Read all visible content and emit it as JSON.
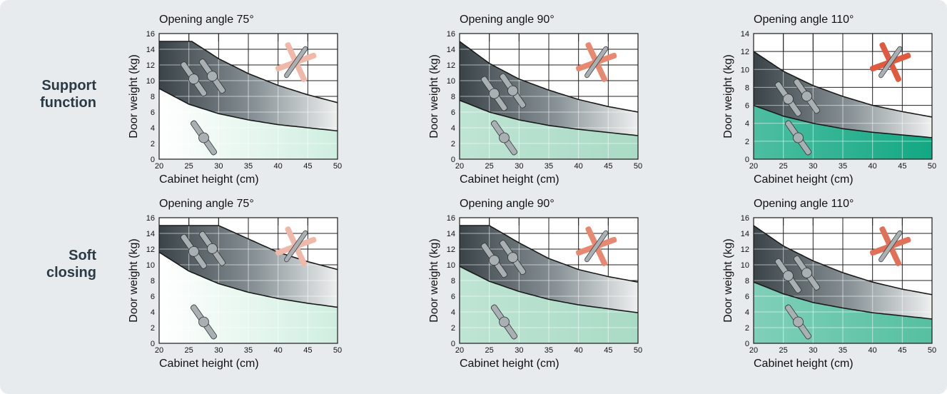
{
  "row_labels": [
    "Support\nfunction",
    "Soft\nclosing"
  ],
  "chart_data": [
    {
      "type": "area",
      "row": 0,
      "col": 0,
      "title": "Opening angle 75°",
      "xlabel": "Cabinet height (cm)",
      "ylabel": "Door weight (kg)",
      "xlim": [
        20,
        50
      ],
      "ylim": [
        0,
        16
      ],
      "xticks": [
        20,
        25,
        30,
        35,
        40,
        45,
        50
      ],
      "yticks": [
        0,
        2,
        4,
        6,
        8,
        10,
        12,
        14,
        16
      ],
      "grid": true,
      "lower_boundary": {
        "x": [
          20,
          25,
          30,
          35,
          40,
          45,
          50
        ],
        "y": [
          9.0,
          7.0,
          5.8,
          5.0,
          4.4,
          4.0,
          3.6
        ]
      },
      "upper_boundary": {
        "x": [
          20,
          25,
          25.5,
          30,
          35,
          40,
          45,
          50
        ],
        "y": [
          15.0,
          15.0,
          15.0,
          12.8,
          10.9,
          9.4,
          8.2,
          7.2
        ]
      },
      "fill_color": "#ffffff",
      "band_color": "#3a4448",
      "hinge_color": "#f0b8a8"
    },
    {
      "type": "area",
      "row": 0,
      "col": 1,
      "title": "Opening angle 90°",
      "xlabel": "Cabinet height (cm)",
      "ylabel": "Door weight (kg)",
      "xlim": [
        20,
        50
      ],
      "ylim": [
        0,
        16
      ],
      "xticks": [
        20,
        25,
        30,
        35,
        40,
        45,
        50
      ],
      "yticks": [
        0,
        2,
        4,
        6,
        8,
        10,
        12,
        14,
        16
      ],
      "grid": true,
      "lower_boundary": {
        "x": [
          20,
          25,
          30,
          35,
          40,
          45,
          50
        ],
        "y": [
          7.5,
          6.0,
          5.0,
          4.3,
          3.8,
          3.4,
          3.0
        ]
      },
      "upper_boundary": {
        "x": [
          20,
          25,
          30,
          35,
          40,
          45,
          50
        ],
        "y": [
          15.0,
          12.2,
          10.2,
          8.8,
          7.6,
          6.7,
          6.0
        ]
      },
      "fill_color": "#a9dbc5",
      "band_color": "#3a4448",
      "hinge_color": "#e88870"
    },
    {
      "type": "area",
      "row": 0,
      "col": 2,
      "title": "Opening angle 110°",
      "xlabel": "Cabinet height (cm)",
      "ylabel": "Door weight (kg)",
      "xlim": [
        20,
        50
      ],
      "ylim": [
        0,
        14
      ],
      "xticks": [
        20,
        25,
        30,
        35,
        40,
        45,
        50
      ],
      "yticks": [
        0,
        2,
        4,
        6,
        8,
        10,
        12,
        14
      ],
      "grid": true,
      "lower_boundary": {
        "x": [
          20,
          25,
          30,
          35,
          40,
          45,
          50
        ],
        "y": [
          6.0,
          4.8,
          4.0,
          3.4,
          3.0,
          2.7,
          2.4
        ]
      },
      "upper_boundary": {
        "x": [
          20,
          25,
          30,
          35,
          40,
          45,
          50
        ],
        "y": [
          12.0,
          9.8,
          8.2,
          7.0,
          6.0,
          5.3,
          4.7
        ]
      },
      "fill_color": "#12a883",
      "band_color": "#3a4448",
      "hinge_color": "#e05a40"
    },
    {
      "type": "area",
      "row": 1,
      "col": 0,
      "title": "Opening angle 75°",
      "xlabel": "Cabinet height (cm)",
      "ylabel": "Door weight (kg)",
      "xlim": [
        20,
        50
      ],
      "ylim": [
        0,
        16
      ],
      "xticks": [
        20,
        25,
        30,
        35,
        40,
        45,
        50
      ],
      "yticks": [
        0,
        2,
        4,
        6,
        8,
        10,
        12,
        14,
        16
      ],
      "grid": true,
      "lower_boundary": {
        "x": [
          20,
          25,
          30,
          35,
          40,
          45,
          50
        ],
        "y": [
          11.6,
          9.2,
          7.6,
          6.5,
          5.7,
          5.1,
          4.6
        ]
      },
      "upper_boundary": {
        "x": [
          20,
          25,
          30,
          35,
          40,
          45,
          50
        ],
        "y": [
          15.0,
          15.0,
          15.0,
          13.3,
          11.6,
          10.4,
          9.4
        ]
      },
      "fill_color": "#ffffff",
      "band_color": "#3a4448",
      "hinge_color": "#f0b8a8"
    },
    {
      "type": "area",
      "row": 1,
      "col": 1,
      "title": "Opening angle 90°",
      "xlabel": "Cabinet height (cm)",
      "ylabel": "Door weight (kg)",
      "xlim": [
        20,
        50
      ],
      "ylim": [
        0,
        16
      ],
      "xticks": [
        20,
        25,
        30,
        35,
        40,
        45,
        50
      ],
      "yticks": [
        0,
        2,
        4,
        6,
        8,
        10,
        12,
        14,
        16
      ],
      "grid": true,
      "lower_boundary": {
        "x": [
          20,
          25,
          30,
          35,
          40,
          45,
          50
        ],
        "y": [
          9.8,
          7.9,
          6.6,
          5.6,
          4.9,
          4.4,
          3.9
        ]
      },
      "upper_boundary": {
        "x": [
          20,
          25,
          30,
          35,
          40,
          45,
          50
        ],
        "y": [
          15.0,
          15.0,
          12.8,
          10.8,
          9.4,
          8.5,
          7.8
        ]
      },
      "fill_color": "#a9dbc5",
      "band_color": "#3a4448",
      "hinge_color": "#e88870"
    },
    {
      "type": "area",
      "row": 1,
      "col": 2,
      "title": "Opening angle 110°",
      "xlabel": "Cabinet height (cm)",
      "ylabel": "Door weight (kg)",
      "xlim": [
        20,
        50
      ],
      "ylim": [
        0,
        16
      ],
      "xticks": [
        20,
        25,
        30,
        35,
        40,
        45,
        50
      ],
      "yticks": [
        0,
        2,
        4,
        6,
        8,
        10,
        12,
        14,
        16
      ],
      "grid": true,
      "lower_boundary": {
        "x": [
          20,
          25,
          30,
          35,
          40,
          45,
          50
        ],
        "y": [
          7.8,
          6.3,
          5.2,
          4.5,
          3.9,
          3.5,
          3.1
        ]
      },
      "upper_boundary": {
        "x": [
          20,
          25,
          30,
          35,
          40,
          45,
          50
        ],
        "y": [
          15.0,
          12.4,
          10.5,
          9.0,
          7.8,
          6.9,
          6.2
        ]
      },
      "fill_color": "#55c0a0",
      "band_color": "#3a4448",
      "hinge_color": "#e07058"
    }
  ]
}
